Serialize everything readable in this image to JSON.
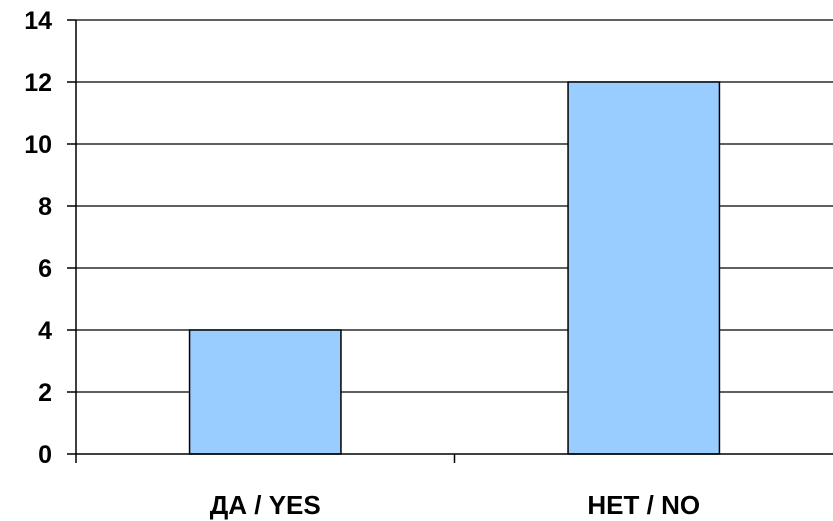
{
  "chart_data": {
    "type": "bar",
    "title": "",
    "xlabel": "",
    "ylabel": "",
    "categories": [
      "ДА / YES",
      "НЕТ / NO"
    ],
    "values": [
      4,
      12
    ],
    "ylim": [
      0,
      14
    ],
    "yticks": [
      0,
      2,
      4,
      6,
      8,
      10,
      12,
      14
    ],
    "grid": true,
    "legend": "none",
    "bar_color": "#99CCFF",
    "bar_stroke": "#000000",
    "grid_color": "#000000"
  }
}
